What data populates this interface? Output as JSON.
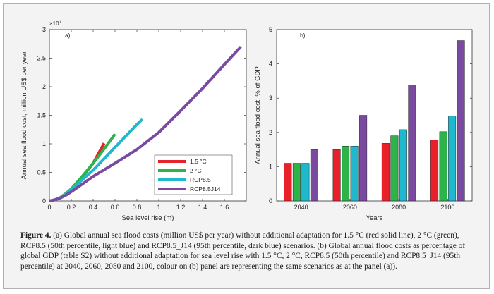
{
  "caption": {
    "label": "Figure 4.",
    "text": " (a) Global annual sea flood costs (million US$ per year) without additional adaptation for 1.5 °C (red solid line), 2 °C (green), RCP8.5 (50th percentile, light blue) and RCP8.5_J14 (95th percentile, dark blue) scenarios. (b) Global annual flood costs as percentage of global GDP (table S2) without additional adaptation for sea level rise with 1.5 °C, 2 °C, RCP8.5 (50th percentile) and RCP8.5_J14 (95th percentile) at 2040, 2060, 2080 and 2100, colour on (b) panel are representing the same scenarios as at the panel (a))."
  },
  "colors": {
    "red": "#e8202a",
    "green": "#2db34a",
    "lightblue": "#1fb8cf",
    "purple": "#7a4aa0"
  },
  "chart_data": [
    {
      "panel": "a)",
      "type": "line",
      "xlabel": "Sea level rise (m)",
      "ylabel": "Annual sea flood cost, million US$ per year",
      "exponent_label": "×10",
      "exponent_power": "7",
      "xlim": [
        0,
        1.8
      ],
      "ylim": [
        0,
        3
      ],
      "xticks": [
        0,
        0.2,
        0.4,
        0.6,
        0.8,
        1,
        1.2,
        1.4,
        1.6
      ],
      "xtick_labels": [
        "0",
        "0.2",
        "0.4",
        "0.6",
        "0.8",
        "1",
        "1.2",
        "1.4",
        "1.6"
      ],
      "yticks": [
        0,
        0.5,
        1,
        1.5,
        2,
        2.5,
        3
      ],
      "ytick_labels": [
        "0",
        "0.5",
        "1",
        "1.5",
        "2",
        "2.5",
        "3"
      ],
      "legend_position": "bottom-right",
      "series": [
        {
          "name": "1.5 °C",
          "color": "#e8202a",
          "points": [
            [
              0,
              0
            ],
            [
              0.05,
              0.02
            ],
            [
              0.1,
              0.06
            ],
            [
              0.15,
              0.13
            ],
            [
              0.2,
              0.21
            ],
            [
              0.3,
              0.42
            ],
            [
              0.4,
              0.66
            ],
            [
              0.5,
              1.01
            ]
          ]
        },
        {
          "name": "2 °C",
          "color": "#2db34a",
          "points": [
            [
              0,
              0
            ],
            [
              0.05,
              0.02
            ],
            [
              0.1,
              0.06
            ],
            [
              0.15,
              0.13
            ],
            [
              0.2,
              0.21
            ],
            [
              0.3,
              0.43
            ],
            [
              0.4,
              0.66
            ],
            [
              0.5,
              0.91
            ],
            [
              0.6,
              1.17
            ]
          ]
        },
        {
          "name": "RCP8.5",
          "color": "#1fb8cf",
          "points": [
            [
              0,
              0
            ],
            [
              0.05,
              0.02
            ],
            [
              0.1,
              0.06
            ],
            [
              0.15,
              0.12
            ],
            [
              0.2,
              0.2
            ],
            [
              0.3,
              0.37
            ],
            [
              0.4,
              0.54
            ],
            [
              0.5,
              0.74
            ],
            [
              0.6,
              0.94
            ],
            [
              0.7,
              1.14
            ],
            [
              0.8,
              1.34
            ],
            [
              0.85,
              1.43
            ]
          ]
        },
        {
          "name": "RCP8.5J14",
          "color": "#7a4aa0",
          "points": [
            [
              0,
              0
            ],
            [
              0.05,
              0.02
            ],
            [
              0.1,
              0.05
            ],
            [
              0.15,
              0.1
            ],
            [
              0.2,
              0.16
            ],
            [
              0.4,
              0.43
            ],
            [
              0.6,
              0.66
            ],
            [
              0.8,
              0.9
            ],
            [
              1.0,
              1.2
            ],
            [
              1.2,
              1.58
            ],
            [
              1.4,
              1.97
            ],
            [
              1.6,
              2.39
            ],
            [
              1.75,
              2.7
            ]
          ]
        }
      ]
    },
    {
      "panel": "b)",
      "type": "bar",
      "xlabel": "Years",
      "ylabel": "Annual sea flood cost, % of GDP",
      "ylim": [
        0,
        5
      ],
      "yticks": [
        0,
        1,
        2,
        3,
        4,
        5
      ],
      "ytick_labels": [
        "0",
        "1",
        "2",
        "3",
        "4",
        "5"
      ],
      "categories": [
        "2040",
        "2060",
        "2080",
        "2100"
      ],
      "series": [
        {
          "name": "1.5 °C",
          "color": "#e8202a",
          "values": [
            1.1,
            1.5,
            1.68,
            1.78
          ]
        },
        {
          "name": "2 °C",
          "color": "#2db34a",
          "values": [
            1.1,
            1.6,
            1.9,
            2.02
          ]
        },
        {
          "name": "RCP8.5",
          "color": "#1fb8cf",
          "values": [
            1.1,
            1.6,
            2.08,
            2.48
          ]
        },
        {
          "name": "RCP8.5J14",
          "color": "#7a4aa0",
          "values": [
            1.5,
            2.5,
            3.38,
            4.68
          ]
        }
      ]
    }
  ]
}
